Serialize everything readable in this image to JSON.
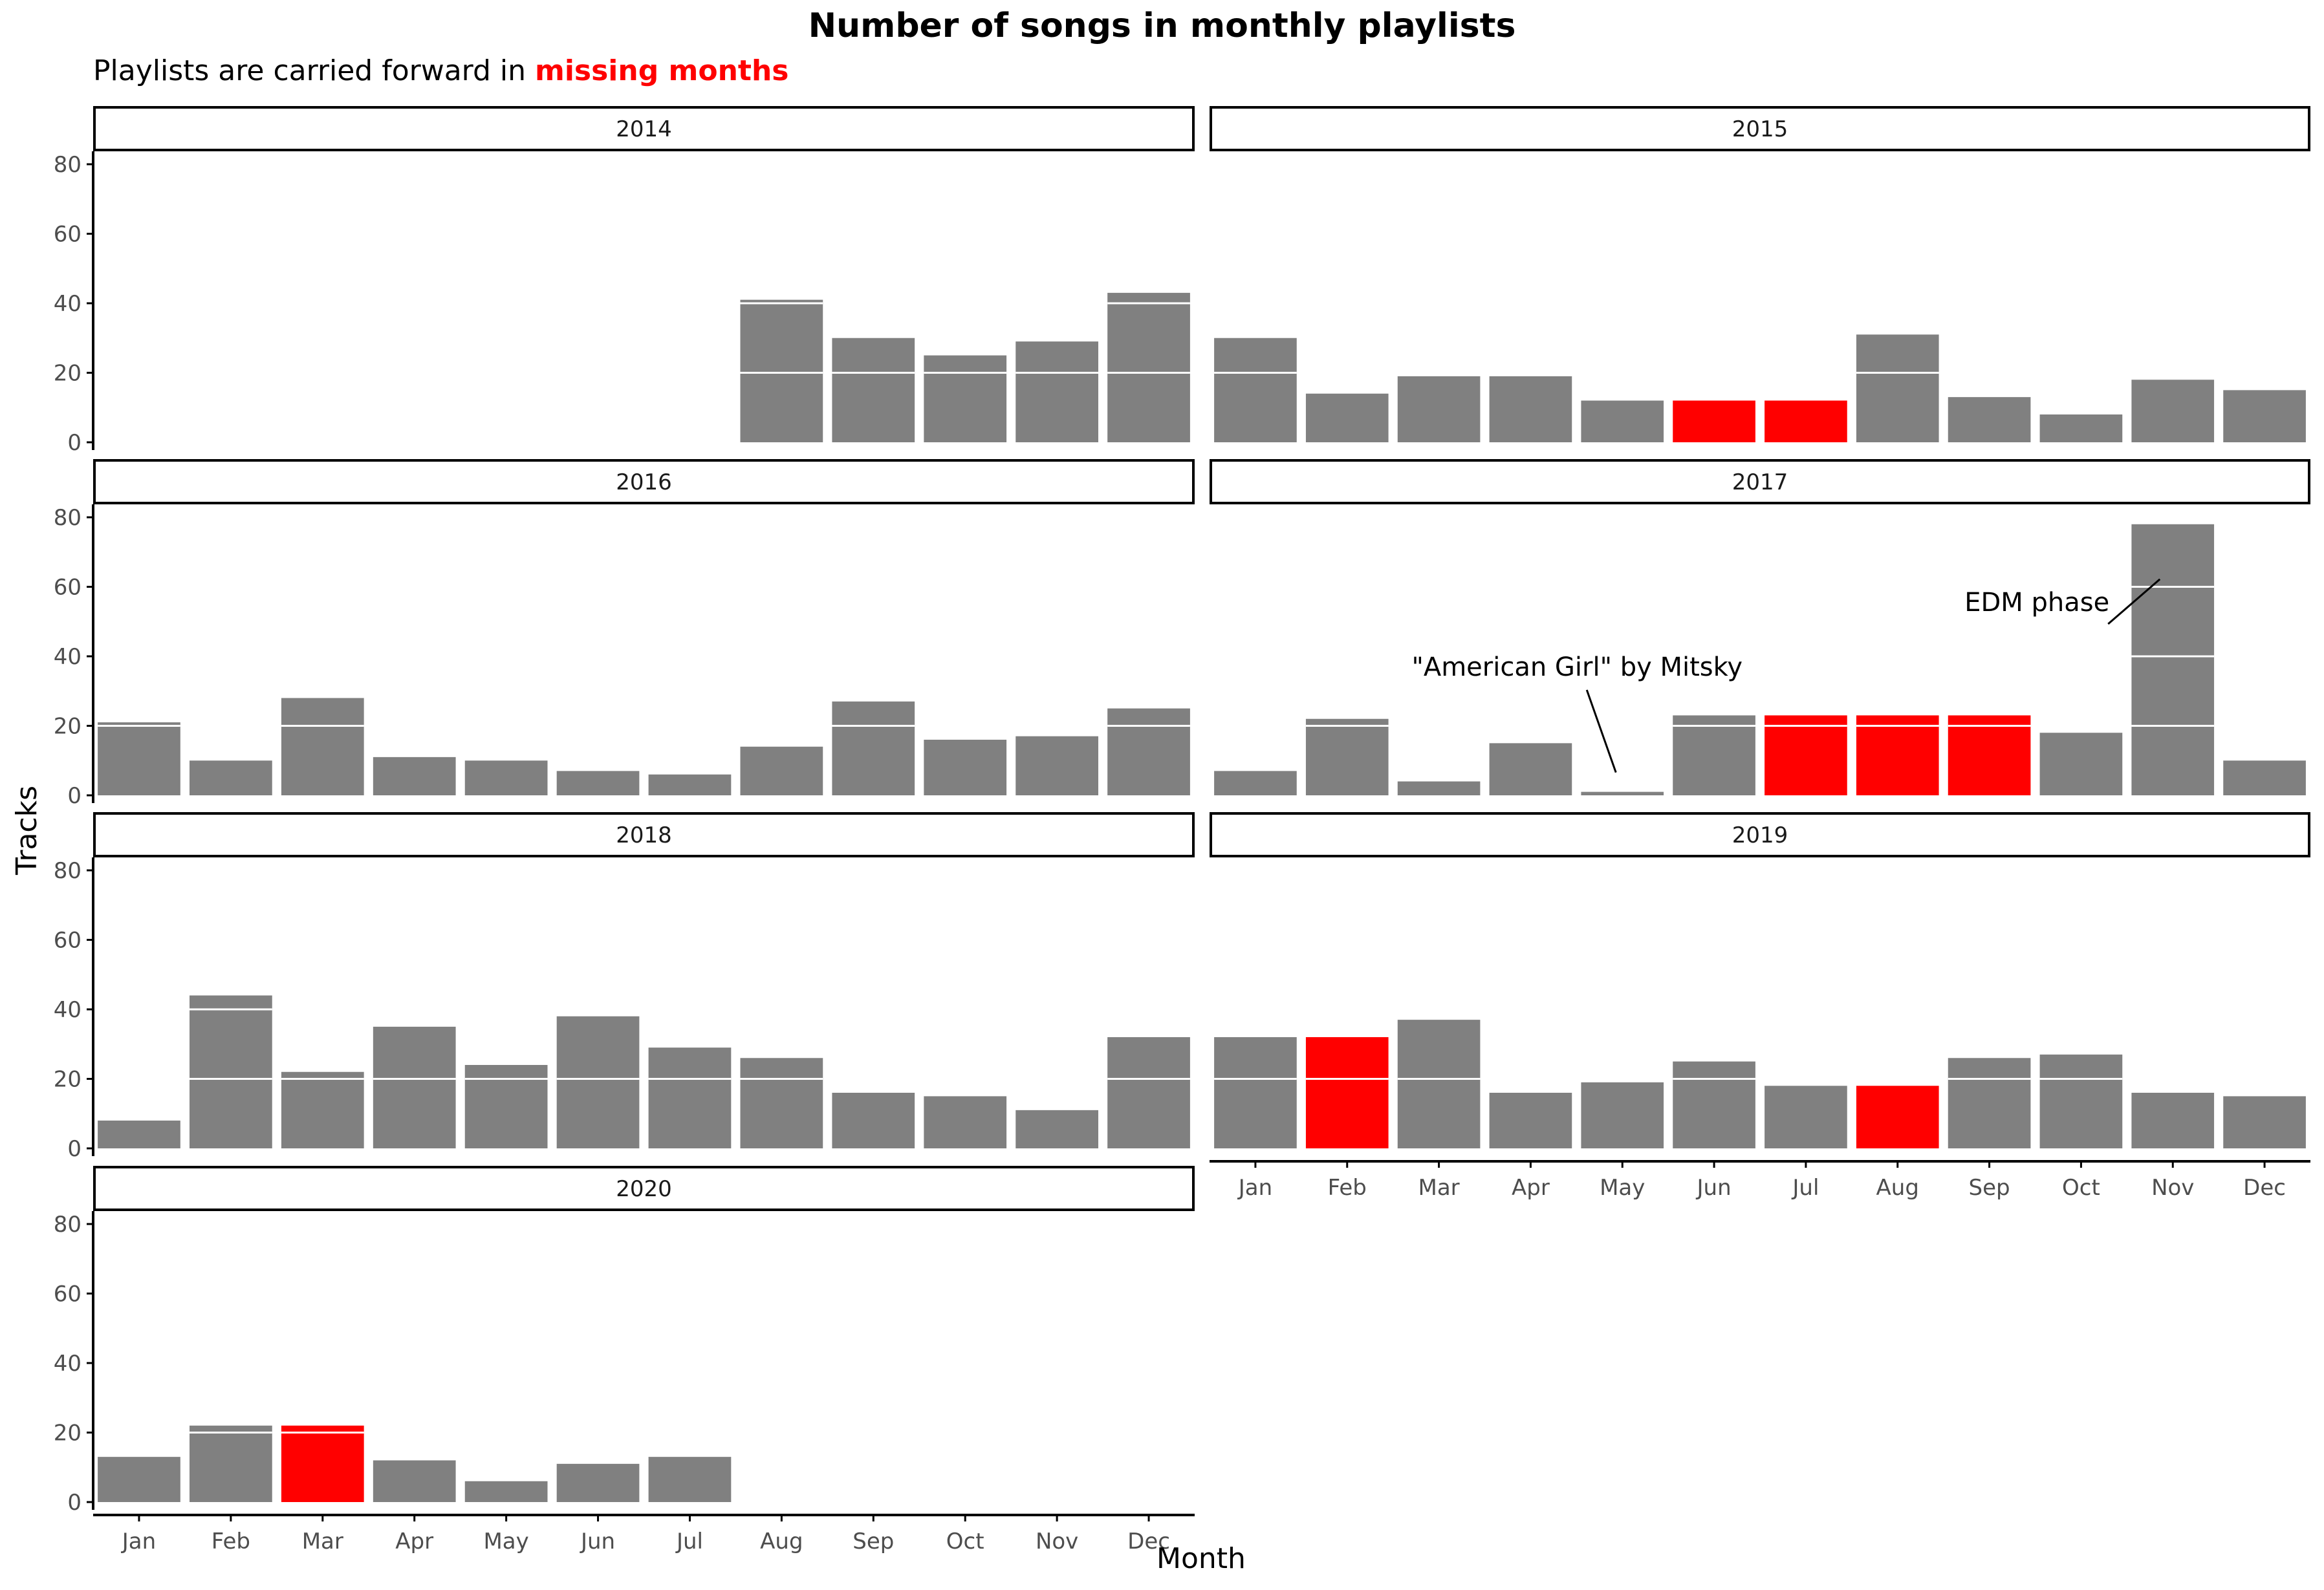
{
  "title": "Number of songs in monthly playlists",
  "subtitle": {
    "prefix": "Playlists are carried forward in ",
    "highlight": "missing months"
  },
  "colors": {
    "bar": "#808080",
    "missing": "#ff0000",
    "axis": "#000000",
    "tick_label": "#4d4d4d",
    "grid_in_bar": "#ffffff"
  },
  "chart_data": {
    "type": "bar",
    "faceted_by": "year",
    "xlabel": "Month",
    "ylabel": "Tracks",
    "ylim": [
      0,
      80
    ],
    "yticks": [
      0,
      20,
      40,
      60,
      80
    ],
    "grid": false,
    "legend": "none",
    "categories": [
      "Jan",
      "Feb",
      "Mar",
      "Apr",
      "May",
      "Jun",
      "Jul",
      "Aug",
      "Sep",
      "Oct",
      "Nov",
      "Dec"
    ],
    "panels": [
      {
        "year": "2014",
        "values": [
          null,
          null,
          null,
          null,
          null,
          null,
          null,
          41,
          30,
          25,
          29,
          43
        ],
        "missing": []
      },
      {
        "year": "2015",
        "values": [
          30,
          14,
          19,
          19,
          12,
          12,
          12,
          31,
          13,
          8,
          18,
          15
        ],
        "missing": [
          "Jun",
          "Jul"
        ]
      },
      {
        "year": "2016",
        "values": [
          21,
          10,
          28,
          11,
          10,
          7,
          6,
          14,
          27,
          16,
          17,
          25
        ],
        "missing": []
      },
      {
        "year": "2017",
        "values": [
          7,
          22,
          4,
          15,
          1,
          23,
          23,
          23,
          23,
          18,
          78,
          10
        ],
        "missing": [
          "Jul",
          "Aug",
          "Sep"
        ]
      },
      {
        "year": "2018",
        "values": [
          8,
          44,
          22,
          35,
          24,
          38,
          29,
          26,
          16,
          15,
          11,
          32
        ],
        "missing": []
      },
      {
        "year": "2019",
        "values": [
          32,
          32,
          37,
          16,
          19,
          25,
          18,
          18,
          26,
          27,
          16,
          15
        ],
        "missing": [
          "Feb",
          "Aug"
        ]
      },
      {
        "year": "2020",
        "values": [
          13,
          22,
          22,
          12,
          6,
          11,
          13,
          null,
          null,
          null,
          null,
          null
        ],
        "missing": [
          "Mar"
        ]
      }
    ],
    "annotations": [
      {
        "panel": "2017",
        "text": "\"American Girl\" by Mitsky",
        "month": "May"
      },
      {
        "panel": "2017",
        "text": "EDM phase",
        "month": "Nov"
      }
    ]
  }
}
